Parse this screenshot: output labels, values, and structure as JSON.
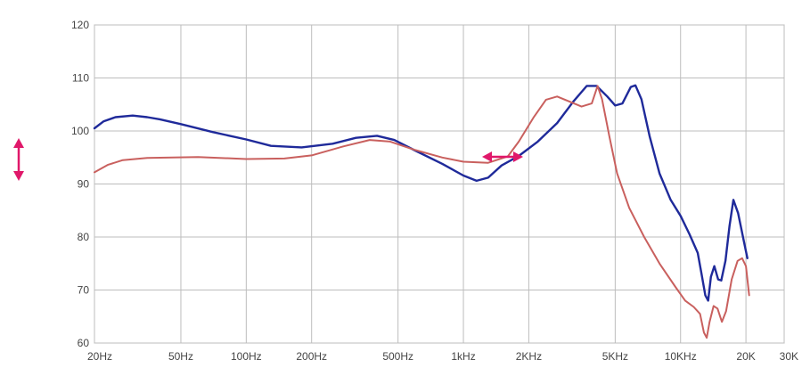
{
  "chart_data": {
    "type": "line",
    "x_scale": "log",
    "xlim": [
      20,
      30000
    ],
    "ylim": [
      60,
      120
    ],
    "grid": true,
    "legend": "none",
    "x_ticks": [
      {
        "value": 20,
        "label": "20Hz"
      },
      {
        "value": 50,
        "label": "50Hz"
      },
      {
        "value": 100,
        "label": "100Hz"
      },
      {
        "value": 200,
        "label": "200Hz"
      },
      {
        "value": 500,
        "label": "500Hz"
      },
      {
        "value": 1000,
        "label": "1kHz"
      },
      {
        "value": 2000,
        "label": "2KHz"
      },
      {
        "value": 5000,
        "label": "5KHz"
      },
      {
        "value": 10000,
        "label": "10KHz"
      },
      {
        "value": 20000,
        "label": "20K"
      },
      {
        "value": 30000,
        "label": "30K"
      }
    ],
    "y_ticks": [
      {
        "value": 60,
        "label": "60"
      },
      {
        "value": 70,
        "label": "70"
      },
      {
        "value": 80,
        "label": "80"
      },
      {
        "value": 90,
        "label": "90"
      },
      {
        "value": 100,
        "label": "100"
      },
      {
        "value": 110,
        "label": "110"
      },
      {
        "value": 120,
        "label": "120"
      }
    ],
    "series": [
      {
        "color": "#1f2a9a",
        "points": [
          [
            20,
            100.5
          ],
          [
            22,
            101.8
          ],
          [
            25,
            102.6
          ],
          [
            30,
            102.9
          ],
          [
            35,
            102.6
          ],
          [
            40,
            102.2
          ],
          [
            50,
            101.3
          ],
          [
            70,
            99.8
          ],
          [
            100,
            98.4
          ],
          [
            130,
            97.2
          ],
          [
            180,
            96.9
          ],
          [
            250,
            97.6
          ],
          [
            320,
            98.7
          ],
          [
            400,
            99.1
          ],
          [
            480,
            98.3
          ],
          [
            600,
            96.3
          ],
          [
            800,
            93.8
          ],
          [
            1000,
            91.6
          ],
          [
            1150,
            90.6
          ],
          [
            1300,
            91.2
          ],
          [
            1500,
            93.5
          ],
          [
            1800,
            95.3
          ],
          [
            2200,
            98.0
          ],
          [
            2700,
            101.5
          ],
          [
            3200,
            105.5
          ],
          [
            3700,
            108.5
          ],
          [
            4100,
            108.5
          ],
          [
            4600,
            106.5
          ],
          [
            5000,
            104.8
          ],
          [
            5400,
            105.2
          ],
          [
            5900,
            108.3
          ],
          [
            6200,
            108.6
          ],
          [
            6600,
            106.0
          ],
          [
            7200,
            99.0
          ],
          [
            8000,
            92.0
          ],
          [
            9000,
            87.0
          ],
          [
            10000,
            84.0
          ],
          [
            11000,
            80.5
          ],
          [
            12000,
            77.0
          ],
          [
            12500,
            73.0
          ],
          [
            13000,
            69.0
          ],
          [
            13400,
            68.0
          ],
          [
            13800,
            72.5
          ],
          [
            14300,
            74.5
          ],
          [
            14900,
            72.0
          ],
          [
            15400,
            71.8
          ],
          [
            16100,
            75.5
          ],
          [
            16800,
            82.0
          ],
          [
            17500,
            87.0
          ],
          [
            18400,
            84.5
          ],
          [
            19500,
            79.5
          ],
          [
            20300,
            76.0
          ]
        ]
      },
      {
        "color": "#c9605e",
        "points": [
          [
            20,
            92.2
          ],
          [
            23,
            93.6
          ],
          [
            27,
            94.5
          ],
          [
            35,
            94.9
          ],
          [
            60,
            95.1
          ],
          [
            100,
            94.7
          ],
          [
            150,
            94.8
          ],
          [
            200,
            95.4
          ],
          [
            280,
            97.1
          ],
          [
            370,
            98.3
          ],
          [
            460,
            98.0
          ],
          [
            600,
            96.4
          ],
          [
            800,
            95.0
          ],
          [
            1000,
            94.2
          ],
          [
            1300,
            94.0
          ],
          [
            1600,
            95.2
          ],
          [
            1800,
            98.0
          ],
          [
            2100,
            102.5
          ],
          [
            2400,
            105.9
          ],
          [
            2700,
            106.5
          ],
          [
            3100,
            105.5
          ],
          [
            3500,
            104.6
          ],
          [
            3900,
            105.2
          ],
          [
            4150,
            108.5
          ],
          [
            4350,
            106.0
          ],
          [
            4700,
            99.0
          ],
          [
            5100,
            92.0
          ],
          [
            5800,
            85.5
          ],
          [
            6800,
            80.0
          ],
          [
            8000,
            75.0
          ],
          [
            9500,
            70.5
          ],
          [
            10500,
            68.0
          ],
          [
            11500,
            66.8
          ],
          [
            12300,
            65.5
          ],
          [
            12800,
            62.0
          ],
          [
            13200,
            61.0
          ],
          [
            13600,
            64.0
          ],
          [
            14200,
            67.0
          ],
          [
            14800,
            66.5
          ],
          [
            15500,
            64.0
          ],
          [
            16200,
            66.0
          ],
          [
            17200,
            72.0
          ],
          [
            18300,
            75.5
          ],
          [
            19200,
            76.0
          ],
          [
            20000,
            74.5
          ],
          [
            20700,
            69.0
          ]
        ]
      }
    ]
  }
}
